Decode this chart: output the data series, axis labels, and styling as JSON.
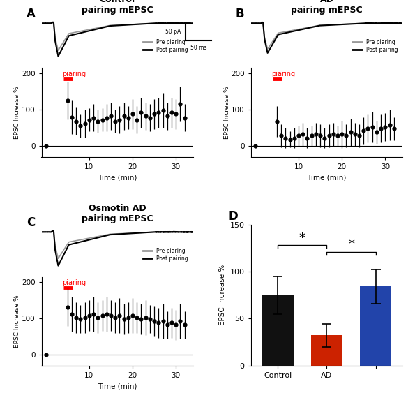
{
  "title_A": "Control\npairing mEPSC",
  "title_B": "AD\npairing mEPSC",
  "title_C": "Osmotin AD\npairing mEPSC",
  "label_A": "A",
  "label_B": "B",
  "label_C": "C",
  "label_D": "D",
  "pre_color": "#999999",
  "post_color": "#000000",
  "legend_pre": "Pre piaring",
  "legend_post": "Post pairing",
  "scale_pA": "50 pA",
  "scale_ms": "50 ms",
  "pairing_label": "piaring",
  "pairing_color": "#ff0000",
  "time_xlabel": "Time (min)",
  "epsc_ylabel": "EPSC Increase %",
  "time_A": [
    0,
    5,
    6,
    7,
    8,
    9,
    10,
    11,
    12,
    13,
    14,
    15,
    16,
    17,
    18,
    19,
    20,
    21,
    22,
    23,
    24,
    25,
    26,
    27,
    28,
    29,
    30,
    31,
    32
  ],
  "mean_A": [
    0,
    125,
    80,
    68,
    55,
    62,
    72,
    78,
    68,
    72,
    78,
    82,
    68,
    72,
    82,
    78,
    88,
    72,
    92,
    82,
    78,
    88,
    92,
    98,
    82,
    92,
    88,
    115,
    78
  ],
  "err_A": [
    0,
    52,
    48,
    38,
    32,
    38,
    32,
    38,
    32,
    32,
    38,
    38,
    32,
    38,
    38,
    32,
    42,
    38,
    42,
    38,
    38,
    42,
    42,
    48,
    38,
    42,
    42,
    48,
    38
  ],
  "time_B": [
    0,
    5,
    6,
    7,
    8,
    9,
    10,
    11,
    12,
    13,
    14,
    15,
    16,
    17,
    18,
    19,
    20,
    21,
    22,
    23,
    24,
    25,
    26,
    27,
    28,
    29,
    30,
    31,
    32
  ],
  "mean_B": [
    0,
    68,
    28,
    22,
    18,
    22,
    28,
    32,
    22,
    28,
    32,
    28,
    22,
    28,
    32,
    28,
    32,
    28,
    38,
    32,
    28,
    42,
    48,
    52,
    38,
    48,
    52,
    58,
    48
  ],
  "err_B": [
    0,
    42,
    32,
    28,
    22,
    28,
    28,
    32,
    28,
    28,
    32,
    32,
    28,
    32,
    32,
    28,
    38,
    32,
    38,
    32,
    32,
    38,
    38,
    42,
    32,
    38,
    38,
    42,
    32
  ],
  "time_C": [
    0,
    5,
    6,
    7,
    8,
    9,
    10,
    11,
    12,
    13,
    14,
    15,
    16,
    17,
    18,
    19,
    20,
    21,
    22,
    23,
    24,
    25,
    26,
    27,
    28,
    29,
    30,
    31,
    32
  ],
  "mean_C": [
    0,
    132,
    112,
    102,
    98,
    102,
    108,
    112,
    102,
    108,
    112,
    108,
    102,
    108,
    98,
    102,
    108,
    102,
    98,
    102,
    98,
    92,
    88,
    92,
    82,
    88,
    82,
    92,
    82
  ],
  "err_C": [
    0,
    52,
    48,
    42,
    38,
    42,
    42,
    48,
    42,
    42,
    48,
    42,
    42,
    48,
    42,
    42,
    48,
    42,
    42,
    48,
    38,
    42,
    42,
    48,
    38,
    42,
    42,
    48,
    38
  ],
  "bar_categories": [
    "Control",
    "AD",
    ""
  ],
  "bar_values": [
    75,
    32,
    84
  ],
  "bar_errors": [
    20,
    12,
    18
  ],
  "bar_colors": [
    "#111111",
    "#cc2200",
    "#2244aa"
  ],
  "bar_ylabel": "EPSC Increase %",
  "bar_ylim": [
    0,
    150
  ],
  "bar_yticks": [
    0,
    50,
    100,
    150
  ]
}
